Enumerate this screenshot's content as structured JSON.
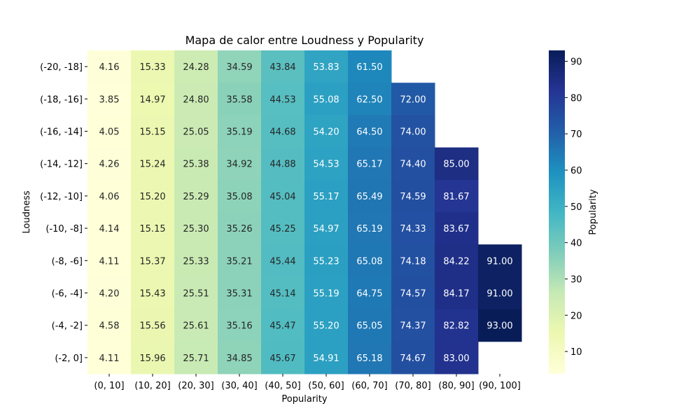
{
  "chart_data": {
    "type": "heatmap",
    "title": "Mapa de calor entre Loudness y Popularity",
    "xlabel": "Popularity",
    "ylabel": "Loudness",
    "x_categories": [
      "(0, 10]",
      "(10, 20]",
      "(20, 30]",
      "(30, 40]",
      "(40, 50]",
      "(50, 60]",
      "(60, 70]",
      "(70, 80]",
      "(80, 90]",
      "(90, 100]"
    ],
    "y_categories": [
      "(-20, -18]",
      "(-18, -16]",
      "(-16, -14]",
      "(-14, -12]",
      "(-12, -10]",
      "(-10, -8]",
      "(-8, -6]",
      "(-6, -4]",
      "(-4, -2]",
      "(-2, 0]"
    ],
    "values": [
      [
        4.16,
        15.33,
        24.28,
        34.59,
        43.84,
        53.83,
        61.5,
        null,
        null,
        null
      ],
      [
        3.85,
        14.97,
        24.8,
        35.58,
        44.53,
        55.08,
        62.5,
        72.0,
        null,
        null
      ],
      [
        4.05,
        15.15,
        25.05,
        35.19,
        44.68,
        54.2,
        64.5,
        74.0,
        null,
        null
      ],
      [
        4.26,
        15.24,
        25.38,
        34.92,
        44.88,
        54.53,
        65.17,
        74.4,
        85.0,
        null
      ],
      [
        4.06,
        15.2,
        25.29,
        35.08,
        45.04,
        55.17,
        65.49,
        74.59,
        81.67,
        null
      ],
      [
        4.14,
        15.15,
        25.3,
        35.26,
        45.25,
        54.97,
        65.19,
        74.33,
        83.67,
        null
      ],
      [
        4.11,
        15.37,
        25.33,
        35.21,
        45.44,
        55.23,
        65.08,
        74.18,
        84.22,
        91.0
      ],
      [
        4.2,
        15.43,
        25.51,
        35.31,
        45.14,
        55.19,
        64.75,
        74.57,
        84.17,
        91.0
      ],
      [
        4.58,
        15.56,
        25.61,
        35.16,
        45.47,
        55.2,
        65.05,
        74.37,
        82.82,
        93.0
      ],
      [
        4.11,
        15.96,
        25.71,
        34.85,
        45.67,
        54.91,
        65.18,
        74.67,
        83.0,
        null
      ]
    ],
    "colorbar": {
      "label": "Popularity",
      "range": [
        3.85,
        93.0
      ],
      "ticks": [
        10,
        20,
        30,
        40,
        50,
        60,
        70,
        80,
        90
      ],
      "colormap": "YlGnBu",
      "colormap_stops": [
        "#ffffd9",
        "#edf8b1",
        "#c7e9b4",
        "#7fcdbb",
        "#41b6c4",
        "#1d91c0",
        "#225ea8",
        "#253494",
        "#081d58"
      ]
    }
  }
}
